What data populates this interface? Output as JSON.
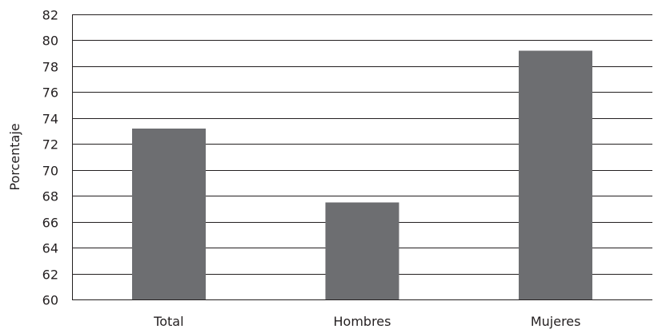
{
  "chart_data": {
    "type": "bar",
    "title": "",
    "xlabel": "",
    "ylabel": "Porcentaje",
    "categories": [
      "Total",
      "Hombres",
      "Mujeres"
    ],
    "values": [
      73.2,
      67.5,
      79.2
    ],
    "ylim": [
      60,
      82
    ],
    "yticks": [
      60,
      62,
      64,
      66,
      68,
      70,
      72,
      74,
      76,
      78,
      80,
      82
    ],
    "grid": true,
    "legend": "none",
    "bar_color": "#6d6e71",
    "grid_color": "#231f20"
  }
}
